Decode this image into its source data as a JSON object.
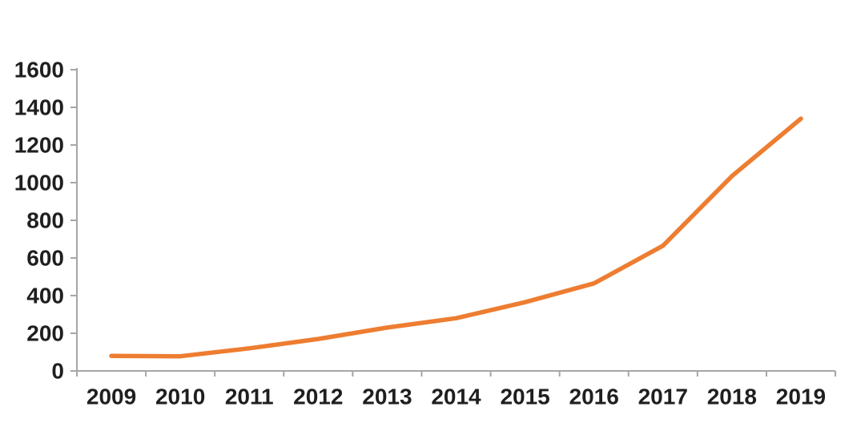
{
  "chart_data": {
    "type": "line",
    "title": "",
    "categories": [
      "2009",
      "2010",
      "2011",
      "2012",
      "2013",
      "2014",
      "2015",
      "2016",
      "2017",
      "2018",
      "2019"
    ],
    "values": [
      80,
      78,
      120,
      170,
      230,
      280,
      365,
      465,
      665,
      1035,
      1340
    ],
    "xlabel": "",
    "ylabel": "",
    "ylim": [
      0,
      1600
    ],
    "ytick_step": 200,
    "ytick_labels": [
      "0",
      "200",
      "400",
      "600",
      "800",
      "1000",
      "1200",
      "1400",
      "1600"
    ],
    "grid": false,
    "legend": false,
    "colors": {
      "line": "#ED7D31",
      "axis": "#A6A6A6",
      "text": "#1F1F1F",
      "background": "#FFFFFF"
    }
  }
}
